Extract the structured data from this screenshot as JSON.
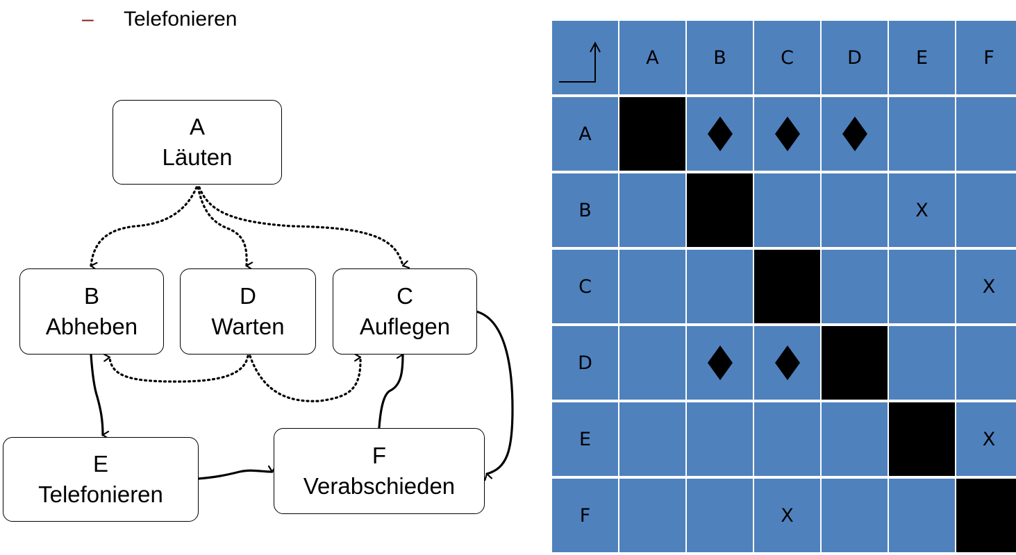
{
  "bullet": {
    "marker": "–",
    "text": "Telefonieren"
  },
  "nodes": {
    "A": {
      "id": "A",
      "label": "Läuten"
    },
    "B": {
      "id": "B",
      "label": "Abheben"
    },
    "C": {
      "id": "C",
      "label": "Auflegen"
    },
    "D": {
      "id": "D",
      "label": "Warten"
    },
    "E": {
      "id": "E",
      "label": "Telefonieren"
    },
    "F": {
      "id": "F",
      "label": "Verabschieden"
    }
  },
  "edges": [
    {
      "from": "A",
      "to": "B",
      "style": "dotted"
    },
    {
      "from": "A",
      "to": "D",
      "style": "dotted"
    },
    {
      "from": "A",
      "to": "C",
      "style": "dotted"
    },
    {
      "from": "D",
      "to": "B",
      "style": "dotted"
    },
    {
      "from": "D",
      "to": "C",
      "style": "dotted"
    },
    {
      "from": "B",
      "to": "E",
      "style": "solid"
    },
    {
      "from": "E",
      "to": "F",
      "style": "solid"
    },
    {
      "from": "F",
      "to": "C",
      "style": "solid"
    },
    {
      "from": "C",
      "to": "F",
      "style": "solid"
    }
  ],
  "matrix": {
    "corner_icon": "corner-arrow-icon",
    "columns": [
      "A",
      "B",
      "C",
      "D",
      "E",
      "F"
    ],
    "rows": [
      "A",
      "B",
      "C",
      "D",
      "E",
      "F"
    ],
    "cells": [
      [
        "",
        "diamond",
        "diamond",
        "diamond",
        "",
        ""
      ],
      [
        "",
        "",
        "",
        "",
        "X",
        ""
      ],
      [
        "",
        "",
        "",
        "",
        "",
        "X"
      ],
      [
        "",
        "diamond",
        "diamond",
        "",
        "",
        ""
      ],
      [
        "",
        "",
        "",
        "",
        "",
        "X"
      ],
      [
        "",
        "",
        "X",
        "",
        "",
        ""
      ]
    ],
    "colors": {
      "cell": "#4f81bd",
      "diagonal": "#000000",
      "grid": "#ffffff"
    }
  }
}
